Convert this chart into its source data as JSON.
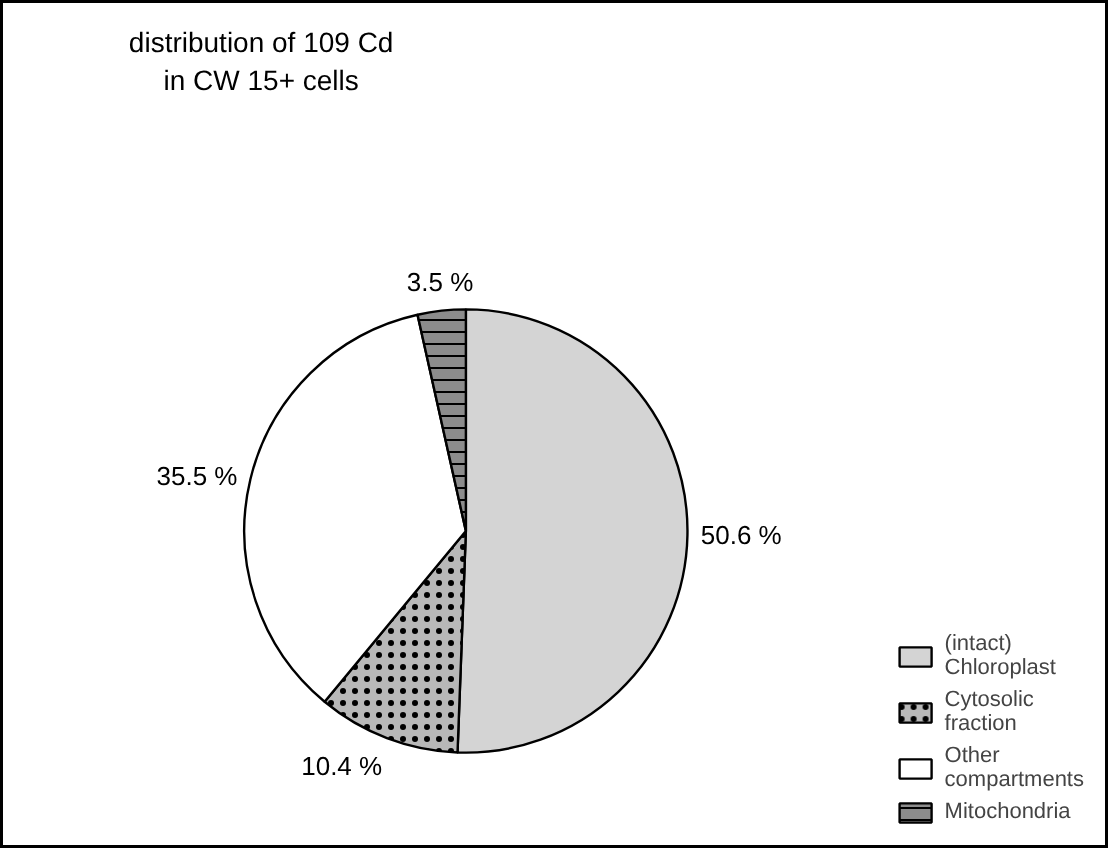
{
  "chart_data": {
    "type": "pie",
    "title": "distribution of 109 Cd\nin CW 15+ cells",
    "categories": [
      "(intact)\nChloroplast",
      "Cytosolic\nfraction",
      "Other\ncompartments",
      "Mitochondria"
    ],
    "values": [
      50.6,
      10.4,
      35.5,
      3.5
    ],
    "value_labels": [
      "50.6 %",
      "10.4 %",
      "35.5 %",
      "3.5 %"
    ],
    "colors": [
      "#d4d4d4",
      "#b8b8b8",
      "#ffffff",
      "#8c8c8c"
    ],
    "legend": "bottom right"
  }
}
